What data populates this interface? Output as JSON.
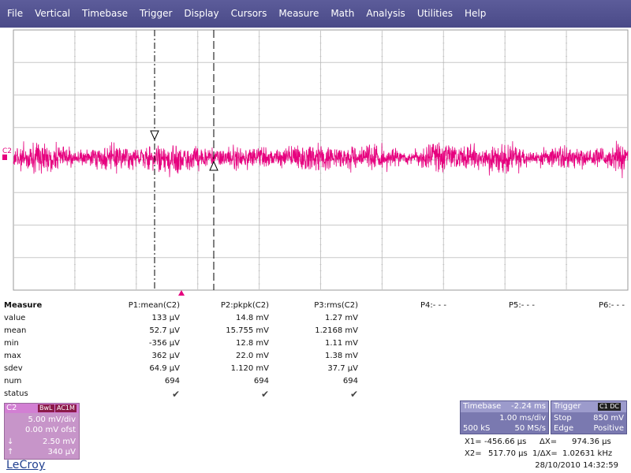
{
  "menu": [
    "File",
    "Vertical",
    "Timebase",
    "Trigger",
    "Display",
    "Cursors",
    "Measure",
    "Math",
    "Analysis",
    "Utilities",
    "Help"
  ],
  "trace": {
    "label": "C2",
    "color": "#e6007e",
    "offset_divs": 0.0,
    "noise_divs": 0.45
  },
  "measure": {
    "title": "Measure",
    "headers": [
      "P1:mean(C2)",
      "P2:pkpk(C2)",
      "P3:rms(C2)",
      "P4:- - -",
      "P5:- - -",
      "P6:- - -"
    ],
    "rows": [
      {
        "label": "value",
        "p1": "133 µV",
        "p2": "14.8 mV",
        "p3": "1.27 mV"
      },
      {
        "label": "mean",
        "p1": "52.7 µV",
        "p2": "15.755 mV",
        "p3": "1.2168 mV"
      },
      {
        "label": "min",
        "p1": "-356 µV",
        "p2": "12.8 mV",
        "p3": "1.11 mV"
      },
      {
        "label": "max",
        "p1": "362 µV",
        "p2": "22.0 mV",
        "p3": "1.38 mV"
      },
      {
        "label": "sdev",
        "p1": "64.9 µV",
        "p2": "1.120 mV",
        "p3": "37.7 µV"
      },
      {
        "label": "num",
        "p1": "694",
        "p2": "694",
        "p3": "694"
      },
      {
        "label": "status",
        "p1": "✔",
        "p2": "✔",
        "p3": "✔"
      }
    ]
  },
  "channel": {
    "name": "C2",
    "bwl": "BwL",
    "coupling": "AC1M",
    "vdiv": "5.00 mV/div",
    "offset": "0.00 mV ofst",
    "cursor1_arrow": "↓",
    "cursor1": "2.50 mV",
    "cursor2_arrow": "↑",
    "cursor2": "340 µV",
    "color": "#c795c9"
  },
  "logo": "LeCroy",
  "timebase": {
    "title": "Timebase",
    "delay": "-2.24 ms",
    "tdiv": "1.00 ms/div",
    "samples": "500 kS",
    "rate": "50 MS/s"
  },
  "trigger": {
    "title": "Trigger",
    "source": "C1 DC",
    "mode": "Stop",
    "level": "850 mV",
    "type": "Edge",
    "slope": "Positive"
  },
  "cursors": {
    "x1_label": "X1=",
    "x1": "-456.66 µs",
    "dx_label": "ΔX=",
    "dx": "974.36 µs",
    "x2_label": "X2=",
    "x2": "517.70 µs",
    "inv_label": "1/ΔX=",
    "inv": "1.02631 kHz"
  },
  "datetime": "28/10/2010 14:32:59",
  "colors": {
    "menubar": "#4f4f8e",
    "trace": "#e6007e",
    "grid": "#c8c8c8",
    "panel": "#7a79b0"
  }
}
